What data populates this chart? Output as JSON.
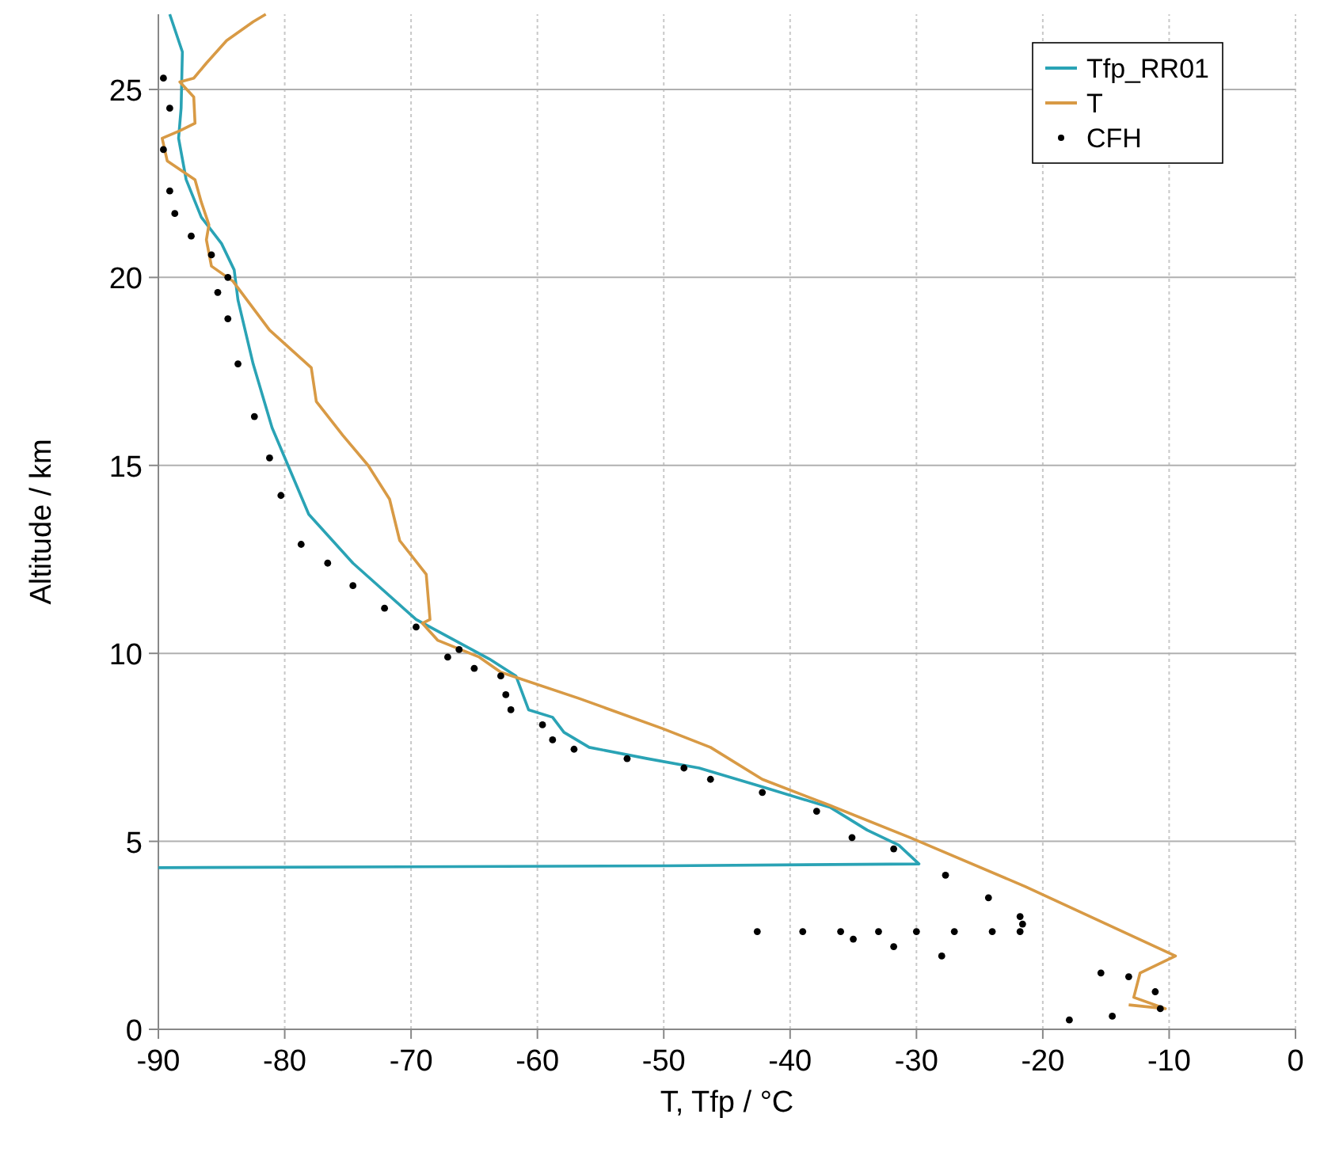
{
  "chart_data": {
    "type": "line",
    "xlabel": "T, Tfp / °C",
    "ylabel": "Altitude / km",
    "xlim": [
      -90,
      0
    ],
    "xticks": [
      -90,
      -80,
      -70,
      -60,
      -50,
      -40,
      -30,
      -20,
      -10,
      0
    ],
    "ylim": [
      0,
      27
    ],
    "yticks": [
      0,
      5,
      10,
      15,
      20,
      25
    ],
    "grid": true,
    "legend": "top right",
    "series": [
      {
        "name": "Tfp_RR01",
        "color": "#2aa3b5",
        "x": [
          -89.1,
          -88.1,
          -88.2,
          -88.4,
          -87.8,
          -86.6,
          -85,
          -84,
          -83.7,
          -82.5,
          -81,
          -78.1,
          -74.6,
          -69.6,
          -63.8,
          -61.7,
          -60.7,
          -58.8,
          -57.9,
          -55.9,
          -51.3,
          -47.2,
          -42.2,
          -36.8,
          -33.9,
          -31.4,
          -29.8,
          -50,
          -90
        ],
        "values": [
          27,
          26,
          24.5,
          23.7,
          22.6,
          21.6,
          20.9,
          20.2,
          19.4,
          17.7,
          16,
          13.7,
          12.4,
          10.9,
          9.85,
          9.4,
          8.5,
          8.3,
          7.9,
          7.5,
          7.2,
          6.95,
          6.45,
          5.9,
          5.3,
          4.9,
          4.4,
          4.35,
          4.3
        ]
      },
      {
        "name": "T",
        "color": "#d89a45",
        "x": [
          -81.5,
          -82.5,
          -84.6,
          -86.2,
          -87.2,
          -88.3,
          -87.2,
          -87.1,
          -88.3,
          -89.7,
          -89.3,
          -87.1,
          -86.6,
          -86,
          -86.2,
          -85.8,
          -84.1,
          -81.2,
          -77.9,
          -77.5,
          -75.4,
          -73.4,
          -71.7,
          -70.9,
          -68.8,
          -68.5,
          -69.1,
          -67.9,
          -64.6,
          -62.9,
          -56.7,
          -50.1,
          -46.3,
          -42.2,
          -36.8,
          -30.5,
          -21.4,
          -9.5,
          -12.3,
          -12.8,
          -10.3,
          -13.2
        ],
        "values": [
          27,
          26.8,
          26.3,
          25.7,
          25.3,
          25.2,
          24.8,
          24.1,
          23.9,
          23.7,
          23.1,
          22.6,
          22,
          21.4,
          21,
          20.3,
          19.9,
          18.6,
          17.6,
          16.7,
          15.8,
          15,
          14.1,
          13,
          12.1,
          10.9,
          10.8,
          10.35,
          9.9,
          9.5,
          8.8,
          8,
          7.5,
          6.65,
          5.95,
          5.1,
          3.8,
          1.95,
          1.5,
          0.85,
          0.55,
          0.65
        ]
      },
      {
        "name": "CFH",
        "type": "scatter",
        "color": "#000000",
        "marker": "circle",
        "x": [
          -89.6,
          -89.1,
          -89.6,
          -89.1,
          -88.7,
          -87.4,
          -85.8,
          -84.5,
          -85.3,
          -84.5,
          -83.7,
          -82.4,
          -81.2,
          -80.3,
          -78.7,
          -76.6,
          -74.6,
          -72.1,
          -69.6,
          -66.2,
          -67.1,
          -65,
          -62.9,
          -62.5,
          -62.1,
          -59.6,
          -58.8,
          -57.1,
          -52.9,
          -48.4,
          -46.3,
          -42.2,
          -37.9,
          -35.1,
          -31.8,
          -27.7,
          -24.3,
          -21.8,
          -21.6,
          -42.6,
          -39,
          -36,
          -33,
          -30,
          -27,
          -24,
          -21.8,
          -35,
          -31.8,
          -28,
          -15.4,
          -13.2,
          -11.1,
          -10.7,
          -14.5,
          -17.9
        ],
        "values": [
          25.3,
          24.5,
          23.4,
          22.3,
          21.7,
          21.1,
          20.6,
          20,
          19.6,
          18.9,
          17.7,
          16.3,
          15.2,
          14.2,
          12.9,
          12.4,
          11.8,
          11.2,
          10.7,
          10.1,
          9.9,
          9.6,
          9.4,
          8.9,
          8.5,
          8.1,
          7.7,
          7.45,
          7.2,
          6.95,
          6.65,
          6.3,
          5.8,
          5.1,
          4.8,
          4.1,
          3.5,
          3,
          2.8,
          2.6,
          2.6,
          2.6,
          2.6,
          2.6,
          2.6,
          2.6,
          2.6,
          2.4,
          2.2,
          1.95,
          1.5,
          1.4,
          1,
          0.55,
          0.35,
          0.25
        ]
      }
    ]
  }
}
